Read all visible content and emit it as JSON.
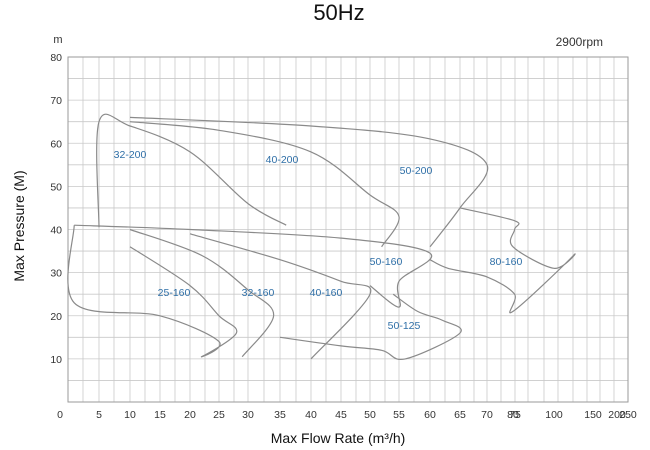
{
  "chart_data": {
    "type": "area",
    "title": "50Hz",
    "speed_label": "2900rpm",
    "y_unit_label": "m",
    "xlabel": "Max Flow Rate (m³/h)",
    "ylabel": "Max Pressure (M)",
    "x_ticks": [
      "0",
      "5",
      "10",
      "15",
      "20",
      "25",
      "30",
      "35",
      "40",
      "45",
      "50",
      "55",
      "60",
      "65",
      "70",
      "75",
      "80",
      "100",
      "150",
      "200",
      "250"
    ],
    "y_ticks": [
      10,
      20,
      30,
      40,
      50,
      60,
      70,
      80
    ],
    "ylim": [
      0,
      80
    ],
    "grid": true,
    "series": [
      {
        "name": "32-200",
        "points": [
          [
            5,
            40.5
          ],
          [
            5,
            65
          ],
          [
            10,
            64
          ],
          [
            20,
            58
          ],
          [
            30,
            46
          ],
          [
            36,
            41
          ]
        ]
      },
      {
        "name": "40-200",
        "points": [
          [
            10,
            65
          ],
          [
            25,
            63
          ],
          [
            40,
            58
          ],
          [
            50,
            48
          ],
          [
            55,
            43
          ],
          [
            52,
            36
          ]
        ]
      },
      {
        "name": "50-200",
        "points": [
          [
            10,
            66
          ],
          [
            40,
            64
          ],
          [
            60,
            61
          ],
          [
            70,
            55
          ],
          [
            65,
            45
          ],
          [
            60,
            36
          ]
        ]
      },
      {
        "name": "80-160",
        "points": [
          [
            65,
            45
          ],
          [
            75,
            42
          ],
          [
            80,
            40
          ],
          [
            100,
            36
          ],
          [
            150,
            31
          ],
          [
            175,
            34
          ],
          [
            100,
            21
          ],
          [
            80,
            25
          ],
          [
            70,
            29
          ],
          [
            63,
            31
          ],
          [
            60,
            33
          ]
        ]
      },
      {
        "name": "50-160",
        "points": [
          [
            1,
            41
          ],
          [
            20,
            40
          ],
          [
            45,
            38
          ],
          [
            60,
            34.5
          ],
          [
            55,
            28
          ],
          [
            55,
            22
          ],
          [
            50,
            27
          ]
        ]
      },
      {
        "name": "25-160",
        "points": [
          [
            1,
            41
          ],
          [
            1,
            23
          ],
          [
            15,
            20
          ],
          [
            25,
            14
          ],
          [
            22,
            10.5
          ],
          [
            28,
            16
          ],
          [
            25,
            20
          ],
          [
            20,
            27
          ],
          [
            10,
            36
          ]
        ]
      },
      {
        "name": "32-160",
        "points": [
          [
            10,
            40
          ],
          [
            22,
            34
          ],
          [
            30,
            26
          ],
          [
            34,
            20
          ],
          [
            29,
            10.5
          ]
        ]
      },
      {
        "name": "40-160",
        "points": [
          [
            20,
            39
          ],
          [
            35,
            33
          ],
          [
            45,
            28
          ],
          [
            50,
            25
          ],
          [
            40,
            10
          ]
        ]
      },
      {
        "name": "50-125",
        "points": [
          [
            35,
            15
          ],
          [
            45,
            13
          ],
          [
            52,
            12
          ],
          [
            56,
            10
          ],
          [
            65,
            16
          ],
          [
            62,
            19
          ],
          [
            58,
            21
          ],
          [
            54,
            25
          ]
        ]
      }
    ]
  }
}
